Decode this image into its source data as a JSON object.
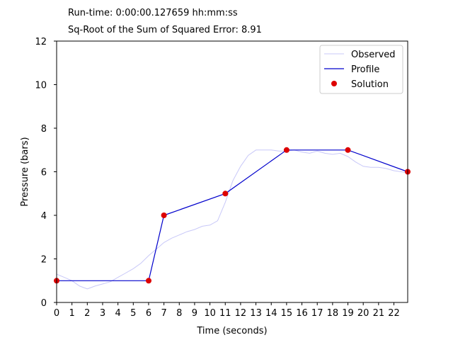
{
  "header": {
    "runtime": "Run-time: 0:00:00.127659 hh:mm:ss",
    "error": "Sq-Root of the Sum of Squared Error: 8.91"
  },
  "chart_data": {
    "type": "line",
    "title": "",
    "xlabel": "Time (seconds)",
    "ylabel": "Pressure (bars)",
    "xlim": [
      0,
      22.9
    ],
    "ylim": [
      0,
      12
    ],
    "x_ticks": [
      0,
      1,
      2,
      3,
      4,
      5,
      6,
      7,
      8,
      9,
      10,
      11,
      12,
      13,
      14,
      15,
      16,
      17,
      18,
      19,
      20,
      21,
      22
    ],
    "y_ticks": [
      0,
      2,
      4,
      6,
      8,
      10,
      12
    ],
    "grid": false,
    "legend_position": "top-right",
    "colors": {
      "observed": "#c8c8f8",
      "profile": "#0000cc",
      "solution": "#dd0000"
    },
    "series": [
      {
        "name": "Observed",
        "style": "line",
        "x": [
          0,
          0.5,
          1,
          1.5,
          2,
          2.5,
          3,
          3.5,
          4,
          4.5,
          5,
          5.5,
          6,
          6.5,
          7,
          7.5,
          8,
          8.5,
          9,
          9.5,
          10,
          10.5,
          11,
          11.5,
          12,
          12.5,
          13,
          13.5,
          14,
          14.5,
          15,
          15.5,
          16,
          16.5,
          17,
          17.5,
          18,
          18.5,
          19,
          19.5,
          20,
          20.5,
          21,
          21.5,
          22,
          22.5,
          22.9
        ],
        "y": [
          1.3,
          1.15,
          1.0,
          0.75,
          0.62,
          0.75,
          0.85,
          0.95,
          1.15,
          1.35,
          1.55,
          1.8,
          2.15,
          2.45,
          2.75,
          2.95,
          3.1,
          3.25,
          3.35,
          3.5,
          3.55,
          3.75,
          4.6,
          5.6,
          6.25,
          6.75,
          7.0,
          7.0,
          7.0,
          6.95,
          6.95,
          7.0,
          6.9,
          6.85,
          6.95,
          6.85,
          6.8,
          6.85,
          6.7,
          6.45,
          6.25,
          6.2,
          6.2,
          6.15,
          6.05,
          6.0,
          5.95
        ]
      },
      {
        "name": "Profile",
        "style": "step",
        "x": [
          0,
          6,
          7,
          11,
          15,
          19,
          22.9
        ],
        "y": [
          1,
          1,
          4,
          5,
          7,
          7,
          6
        ]
      },
      {
        "name": "Solution",
        "style": "points",
        "x": [
          0,
          6,
          7,
          11,
          15,
          19,
          22.9
        ],
        "y": [
          1,
          1,
          4,
          5,
          7,
          7,
          6
        ]
      }
    ]
  }
}
